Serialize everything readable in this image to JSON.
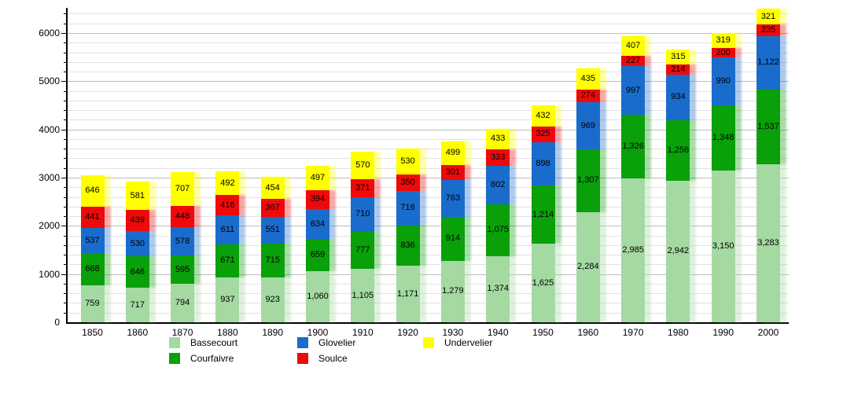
{
  "chart_data": {
    "type": "bar",
    "stacked": true,
    "title": "",
    "xlabel": "",
    "ylabel": "",
    "x": [
      "1850",
      "1860",
      "1870",
      "1880",
      "1890",
      "1900",
      "1910",
      "1920",
      "1930",
      "1940",
      "1950",
      "1960",
      "1970",
      "1980",
      "1990",
      "2000"
    ],
    "series": [
      {
        "name": "Bassecourt",
        "color": "#a5d9a2",
        "values": [
          759,
          717,
          794,
          937,
          923,
          1060,
          1105,
          1171,
          1279,
          1374,
          1625,
          2284,
          2985,
          2942,
          3150,
          3283
        ]
      },
      {
        "name": "Courfaivre",
        "color": "#0aa00a",
        "values": [
          668,
          646,
          595,
          671,
          715,
          659,
          777,
          836,
          914,
          1075,
          1214,
          1307,
          1326,
          1256,
          1348,
          1537
        ]
      },
      {
        "name": "Glovelier",
        "color": "#1a6ccc",
        "values": [
          537,
          530,
          578,
          611,
          551,
          634,
          710,
          716,
          763,
          802,
          898,
          969,
          997,
          934,
          990,
          1122
        ]
      },
      {
        "name": "Soulce",
        "color": "#ee0a0a",
        "values": [
          441,
          439,
          448,
          416,
          367,
          394,
          371,
          350,
          301,
          333,
          325,
          274,
          227,
          214,
          200,
          235
        ]
      },
      {
        "name": "Undervelier",
        "color": "#ffff00",
        "values": [
          646,
          581,
          707,
          492,
          454,
          497,
          570,
          530,
          499,
          433,
          432,
          435,
          407,
          315,
          319,
          321
        ]
      }
    ],
    "stack_order_bottom_to_top": [
      "Bassecourt",
      "Courfaivre",
      "Glovelier",
      "Soulce",
      "Undervelier"
    ],
    "ylim": [
      0,
      6400
    ],
    "yticks_major": [
      0,
      1000,
      2000,
      3000,
      4000,
      5000,
      6000
    ],
    "grid_minor_step": 200,
    "grid": true,
    "legend_position": "bottom",
    "legend_rows": [
      [
        "Bassecourt",
        "Glovelier",
        "Undervelier"
      ],
      [
        "Courfaivre",
        "Soulce"
      ]
    ]
  },
  "style": {
    "grid_minor_color": "#e2e2e2",
    "grid_major_color": "#bdbdbd",
    "axis_color": "#000000",
    "label_color": "#000000",
    "background": "#ffffff"
  }
}
